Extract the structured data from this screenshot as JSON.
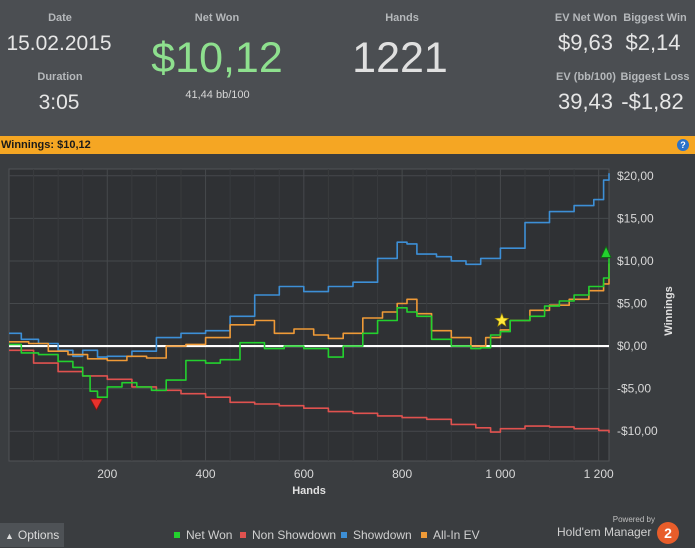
{
  "summary": {
    "date_label": "Date",
    "date_value": "15.02.2015",
    "duration_label": "Duration",
    "duration_value": "3:05",
    "net_won_label": "Net Won",
    "net_won_value": "$10,12",
    "bb100": "41,44 bb/100",
    "hands_label": "Hands",
    "hands_value": "1221",
    "ev_net_won_label": "EV Net Won",
    "ev_net_won_value": "$9,63",
    "biggest_win_label": "Biggest Win",
    "biggest_win_value": "$2,14",
    "ev_bb100_label": "EV (bb/100)",
    "ev_bb100_value": "39,43",
    "biggest_loss_label": "Biggest Loss",
    "biggest_loss_value": "-$1,82"
  },
  "winnings_bar": {
    "text": "Winnings: $10,12",
    "help_label": "?"
  },
  "footer": {
    "options_label": "Options",
    "powered_by": "Powered by",
    "brand": "Hold'em Manager",
    "brand_badge": "2"
  },
  "colors": {
    "net_won": "#23d12e",
    "non_showdown": "#e0524f",
    "showdown": "#3d8fd6",
    "allin_ev": "#ef9a37",
    "net_won_value": "#8ee08e"
  },
  "chart_data": {
    "type": "line",
    "xlabel": "Hands",
    "ylabel": "Winnings",
    "xlim": [
      0,
      1221
    ],
    "ylim": [
      -13.5,
      20.8
    ],
    "x_ticks": [
      200,
      400,
      600,
      800,
      1000,
      1200
    ],
    "x_tick_labels": [
      "200",
      "400",
      "600",
      "800",
      "1 000",
      "1 200"
    ],
    "y_ticks": [
      20,
      15,
      10,
      5,
      0,
      -5,
      -10
    ],
    "y_tick_labels": [
      "$20,00",
      "$15,00",
      "$10,00",
      "$5,00",
      "$0,00",
      "-$5,00",
      "-$10,00"
    ],
    "grid": true,
    "legend_position": "bottom",
    "series": [
      {
        "name": "Net Won",
        "color_key": "net_won",
        "points": [
          [
            0,
            0.2
          ],
          [
            25,
            -0.8
          ],
          [
            60,
            -1
          ],
          [
            100,
            -1.8
          ],
          [
            130,
            -2.5
          ],
          [
            150,
            -3.5
          ],
          [
            165,
            -5.3
          ],
          [
            180,
            -6
          ],
          [
            200,
            -4.8
          ],
          [
            230,
            -4.3
          ],
          [
            260,
            -4.8
          ],
          [
            290,
            -5.2
          ],
          [
            320,
            -4
          ],
          [
            360,
            -1.7
          ],
          [
            400,
            -2
          ],
          [
            430,
            -1.6
          ],
          [
            470,
            0.4
          ],
          [
            520,
            -0.3
          ],
          [
            560,
            0
          ],
          [
            600,
            -0.3
          ],
          [
            650,
            -1.3
          ],
          [
            680,
            0
          ],
          [
            720,
            1.5
          ],
          [
            750,
            3
          ],
          [
            790,
            4.5
          ],
          [
            810,
            4
          ],
          [
            830,
            3.5
          ],
          [
            860,
            0.8
          ],
          [
            900,
            0
          ],
          [
            940,
            -0.3
          ],
          [
            960,
            -0.2
          ],
          [
            980,
            1.3
          ],
          [
            1000,
            1.7
          ],
          [
            1020,
            3
          ],
          [
            1040,
            3
          ],
          [
            1060,
            3.5
          ],
          [
            1090,
            4.7
          ],
          [
            1120,
            5.3
          ],
          [
            1150,
            6
          ],
          [
            1180,
            7
          ],
          [
            1210,
            8
          ],
          [
            1221,
            10.3
          ]
        ]
      },
      {
        "name": "Non Showdown",
        "color_key": "non_showdown",
        "points": [
          [
            0,
            -0.5
          ],
          [
            50,
            -2
          ],
          [
            100,
            -3
          ],
          [
            150,
            -3.5
          ],
          [
            200,
            -3.9
          ],
          [
            250,
            -4.8
          ],
          [
            300,
            -5.2
          ],
          [
            350,
            -5.6
          ],
          [
            400,
            -6
          ],
          [
            450,
            -6.6
          ],
          [
            500,
            -6.8
          ],
          [
            550,
            -7
          ],
          [
            600,
            -7.3
          ],
          [
            650,
            -7.7
          ],
          [
            700,
            -7.9
          ],
          [
            750,
            -8.2
          ],
          [
            800,
            -8.4
          ],
          [
            850,
            -8.6
          ],
          [
            900,
            -9.2
          ],
          [
            950,
            -9.6
          ],
          [
            980,
            -10.1
          ],
          [
            1000,
            -9.7
          ],
          [
            1050,
            -9.4
          ],
          [
            1100,
            -9.5
          ],
          [
            1150,
            -9.7
          ],
          [
            1200,
            -9.9
          ],
          [
            1221,
            -10.2
          ]
        ]
      },
      {
        "name": "Showdown",
        "color_key": "showdown",
        "points": [
          [
            0,
            1.5
          ],
          [
            25,
            0.8
          ],
          [
            60,
            0.3
          ],
          [
            100,
            -0.5
          ],
          [
            130,
            -1.2
          ],
          [
            150,
            -0.5
          ],
          [
            180,
            -1.3
          ],
          [
            200,
            -1.2
          ],
          [
            250,
            -0.6
          ],
          [
            300,
            1
          ],
          [
            350,
            1.5
          ],
          [
            400,
            1.8
          ],
          [
            450,
            3.5
          ],
          [
            500,
            6
          ],
          [
            550,
            7
          ],
          [
            600,
            6.4
          ],
          [
            650,
            7
          ],
          [
            700,
            7.5
          ],
          [
            750,
            10.3
          ],
          [
            790,
            12.2
          ],
          [
            810,
            12
          ],
          [
            830,
            10.8
          ],
          [
            870,
            10.5
          ],
          [
            900,
            10
          ],
          [
            930,
            9.6
          ],
          [
            960,
            10.3
          ],
          [
            1000,
            11.5
          ],
          [
            1050,
            14.5
          ],
          [
            1100,
            15.8
          ],
          [
            1150,
            16.5
          ],
          [
            1190,
            17.2
          ],
          [
            1210,
            19.5
          ],
          [
            1221,
            20.3
          ]
        ]
      },
      {
        "name": "All-In EV",
        "color_key": "allin_ev",
        "points": [
          [
            0,
            0.5
          ],
          [
            40,
            0.3
          ],
          [
            80,
            -0.6
          ],
          [
            120,
            -1
          ],
          [
            160,
            -1.5
          ],
          [
            200,
            -1.7
          ],
          [
            240,
            -1.2
          ],
          [
            280,
            -1.4
          ],
          [
            320,
            0
          ],
          [
            360,
            0.2
          ],
          [
            400,
            1
          ],
          [
            450,
            2.5
          ],
          [
            500,
            3
          ],
          [
            540,
            1.5
          ],
          [
            580,
            2
          ],
          [
            620,
            1.3
          ],
          [
            650,
            0.9
          ],
          [
            680,
            1.5
          ],
          [
            720,
            3.3
          ],
          [
            760,
            4
          ],
          [
            790,
            5
          ],
          [
            810,
            5.5
          ],
          [
            830,
            3.8
          ],
          [
            860,
            1.8
          ],
          [
            900,
            1
          ],
          [
            940,
            0
          ],
          [
            970,
            1
          ],
          [
            1000,
            1.9
          ],
          [
            1020,
            3
          ],
          [
            1060,
            4.2
          ],
          [
            1100,
            4.8
          ],
          [
            1140,
            5.5
          ],
          [
            1180,
            6.5
          ],
          [
            1210,
            7.3
          ],
          [
            1221,
            9.7
          ]
        ]
      }
    ],
    "markers": [
      {
        "name": "Biggest Loss",
        "x": 178,
        "y": -6.8,
        "symbol": "down-triangle",
        "color": "#e8322c"
      },
      {
        "name": "Biggest Win",
        "x": 1003,
        "y": 3,
        "symbol": "star",
        "color": "#ffe83b"
      },
      {
        "name": "Final",
        "x": 1215,
        "y": 11,
        "symbol": "up-triangle",
        "color": "#23d12e"
      }
    ]
  }
}
